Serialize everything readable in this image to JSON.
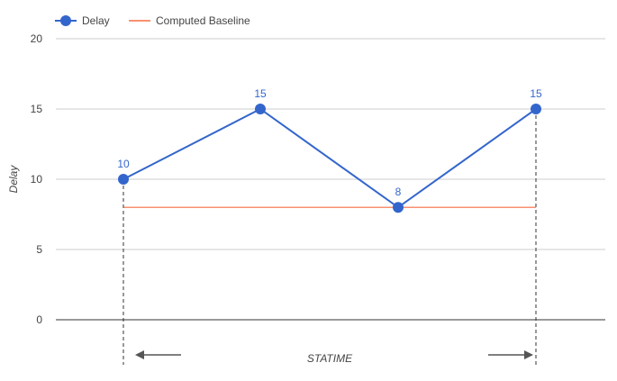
{
  "colors": {
    "delay_series": "#3366cc",
    "baseline": "#f4511e",
    "axis_text": "#444444",
    "label_text": "#3366cc",
    "gridline": "#cccccc",
    "axis_line": "#333333",
    "annotation": "#555555"
  },
  "chart_data": {
    "type": "line",
    "xlabel": "STATIME",
    "ylabel": "Delay",
    "ylim": [
      0,
      20
    ],
    "yticks": [
      "0",
      "5",
      "10",
      "15",
      "20"
    ],
    "grid": true,
    "legend_position": "top-left",
    "series": [
      {
        "name": "Delay",
        "kind": "line-with-markers",
        "values": [
          10,
          15,
          8,
          15
        ],
        "data_labels": [
          "10",
          "15",
          "8",
          "15"
        ]
      },
      {
        "name": "Computed Baseline",
        "kind": "line",
        "values": [
          8,
          8,
          8,
          8
        ]
      }
    ],
    "annotations": {
      "range_markers": "dashed vertical lines at first and last point",
      "arrows": [
        "left-arrow",
        "right-arrow"
      ]
    }
  }
}
